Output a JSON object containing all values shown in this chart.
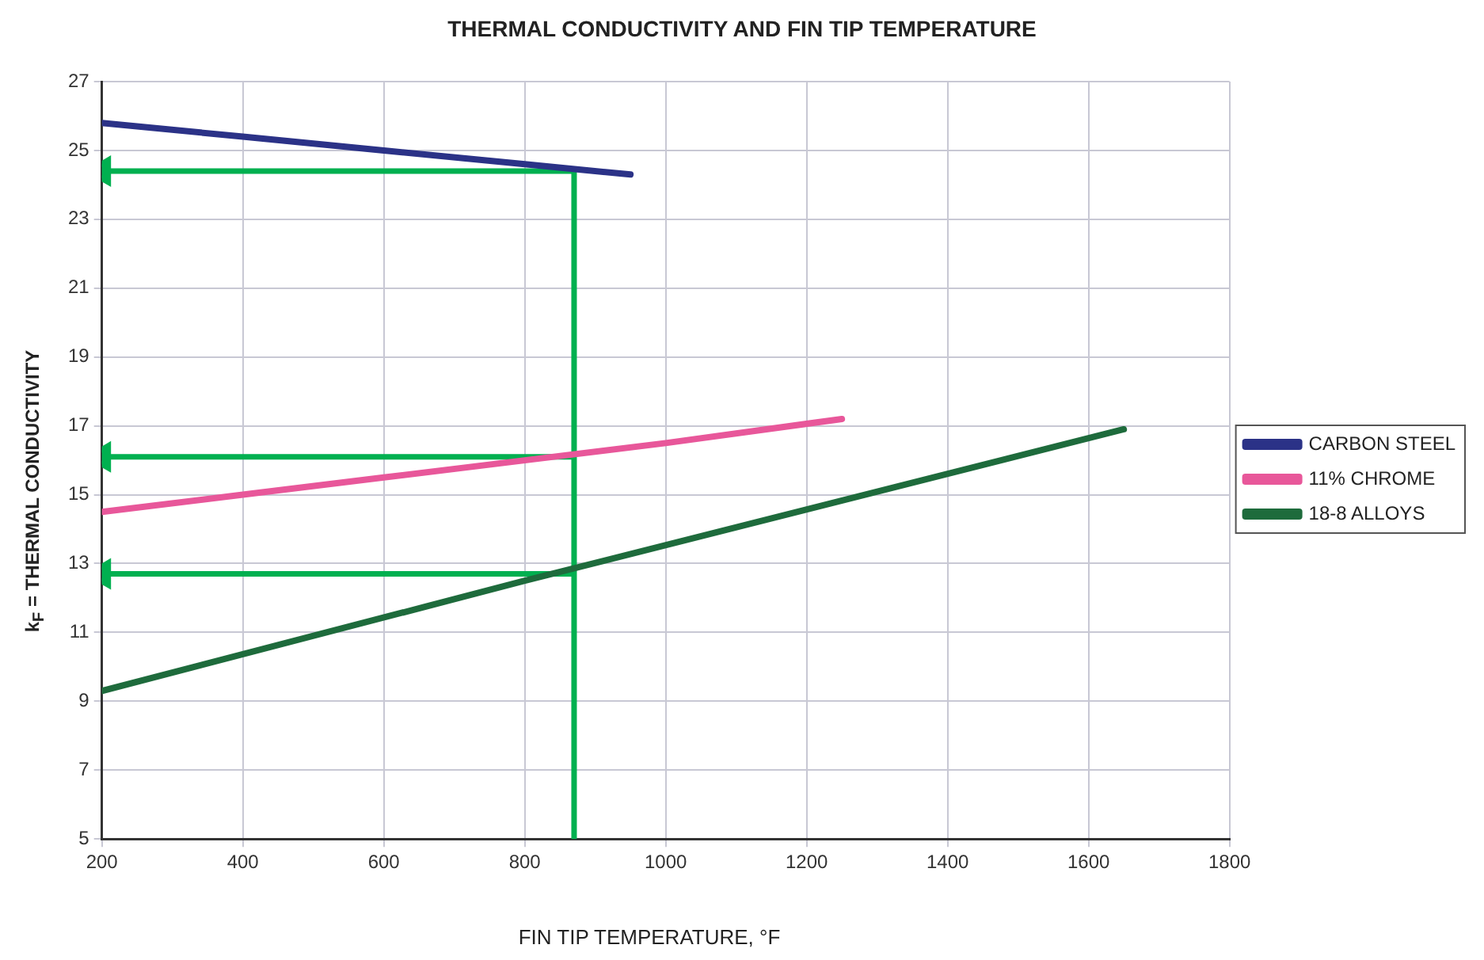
{
  "chart_data": {
    "type": "line",
    "title": "THERMAL CONDUCTIVITY AND FIN TIP TEMPERATURE",
    "xlabel": "FIN TIP TEMPERATURE, °F",
    "ylabel": "k$_{F}$ = THERMAL CONDUCTIVITY",
    "xlim": [
      200,
      1800
    ],
    "xticks": [
      200,
      400,
      600,
      800,
      1000,
      1200,
      1400,
      1600,
      1800
    ],
    "ylim": [
      5,
      27
    ],
    "yticks": [
      5,
      7,
      9,
      11,
      13,
      15,
      17,
      19,
      21,
      23,
      25,
      27
    ],
    "grid": true,
    "legend": "right",
    "marker": "none",
    "line_style": "solid",
    "series": [
      {
        "name": "CARBON STEEL",
        "color": "#2b3287",
        "x": [
          200,
          400,
          600,
          800,
          950
        ],
        "values": [
          25.8,
          25.4,
          25.0,
          24.6,
          24.3
        ]
      },
      {
        "name": "11% CHROME",
        "color": "#e8579a",
        "x": [
          200,
          400,
          600,
          800,
          1000,
          1250
        ],
        "values": [
          14.5,
          15.0,
          15.5,
          16.0,
          16.5,
          17.2
        ]
      },
      {
        "name": "18-8 ALLOYS",
        "color": "#1e6b3c",
        "x": [
          200,
          800,
          1650
        ],
        "values": [
          9.3,
          12.5,
          16.9
        ]
      },
      {
        "color": "#00b050",
        "marker": "triangle",
        "x": [
          870,
          200
        ],
        "values": [
          24.4,
          24.4
        ]
      },
      {
        "color": "#00b050",
        "marker": "triangle",
        "x": [
          870,
          200
        ],
        "values": [
          16.1,
          16.1
        ]
      },
      {
        "color": "#00b050",
        "marker": "triangle",
        "x": [
          870,
          200
        ],
        "values": [
          12.7,
          12.7
        ]
      },
      {
        "color": "#00b050",
        "x": [
          870,
          870
        ],
        "values": [
          24.4,
          5
        ]
      }
    ]
  }
}
